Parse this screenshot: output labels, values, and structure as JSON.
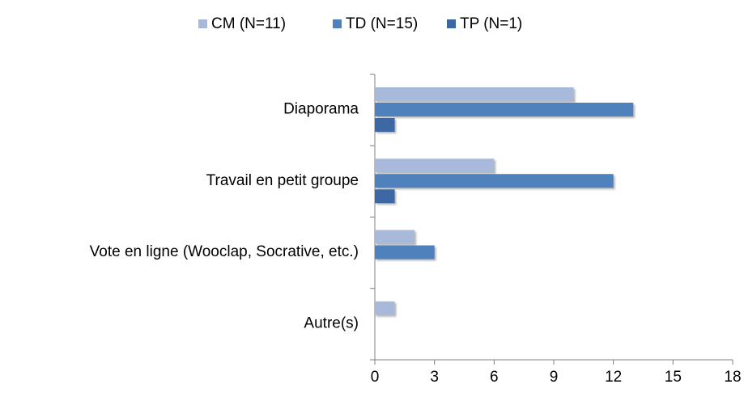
{
  "chart_data": {
    "type": "bar",
    "orientation": "horizontal",
    "categories": [
      "Diaporama",
      "Travail en petit groupe",
      "Vote en ligne (Wooclap, Socrative, etc.)",
      "Autre(s)"
    ],
    "series": [
      {
        "name": "CM (N=11)",
        "color": "#a9b9d9",
        "values": [
          10,
          6,
          2,
          1
        ]
      },
      {
        "name": "TD (N=15)",
        "color": "#4f81bd",
        "values": [
          13,
          12,
          3,
          0
        ]
      },
      {
        "name": "TP (N=1)",
        "color": "#3c67a3",
        "values": [
          1,
          1,
          0,
          0
        ]
      }
    ],
    "xlim": [
      0,
      18
    ],
    "xticks": [
      0,
      3,
      6,
      9,
      12,
      15,
      18
    ],
    "grid": false,
    "legend": "top"
  }
}
